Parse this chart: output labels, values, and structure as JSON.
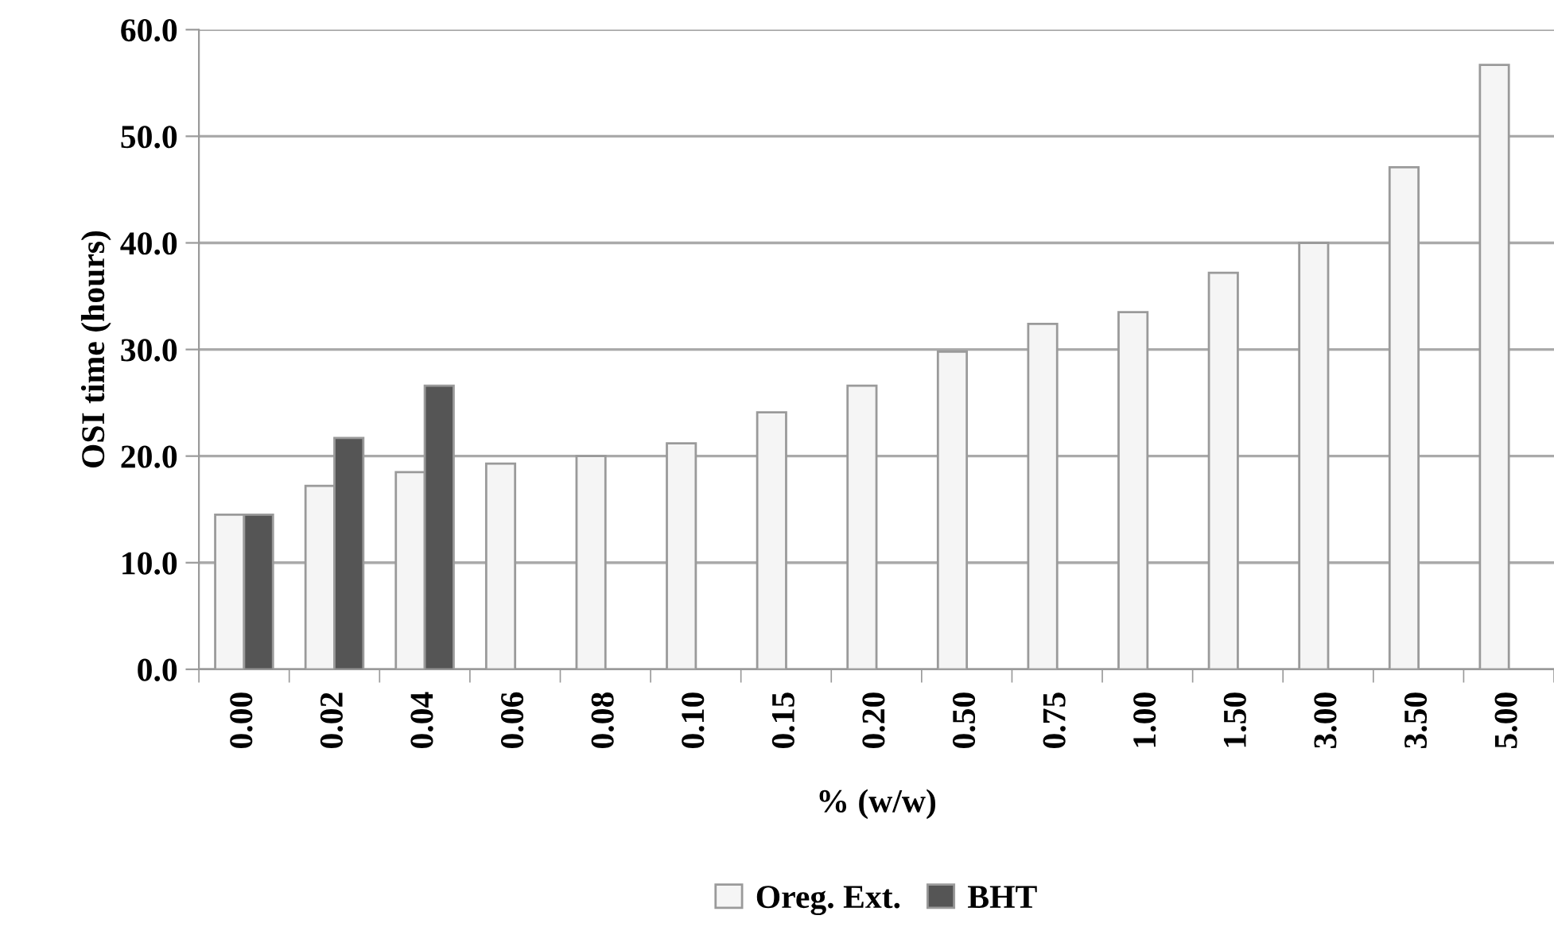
{
  "chart_data": {
    "type": "bar",
    "xlabel": "% (w/w)",
    "ylabel": "OSI time (hours)",
    "categories": [
      "0.00",
      "0.02",
      "0.04",
      "0.06",
      "0.08",
      "0.10",
      "0.15",
      "0.20",
      "0.50",
      "0.75",
      "1.00",
      "1.50",
      "3.00",
      "3.50",
      "5.00"
    ],
    "series": [
      {
        "name": "Oreg. Ext.",
        "color": "#f5f5f5",
        "values": [
          14.5,
          17.2,
          18.5,
          19.3,
          20.0,
          21.2,
          24.1,
          26.6,
          29.8,
          32.4,
          33.5,
          37.2,
          40.0,
          47.1,
          56.7
        ]
      },
      {
        "name": "BHT",
        "color": "#555555",
        "values": [
          14.5,
          21.7,
          26.6,
          null,
          null,
          null,
          null,
          null,
          null,
          null,
          null,
          null,
          null,
          null,
          null
        ]
      }
    ],
    "ylim": [
      0,
      60
    ],
    "yticks": [
      {
        "value": 0,
        "label": "0.0"
      },
      {
        "value": 10,
        "label": "10.0"
      },
      {
        "value": 20,
        "label": "20.0"
      },
      {
        "value": 30,
        "label": "30.0"
      },
      {
        "value": 40,
        "label": "40.0"
      },
      {
        "value": 50,
        "label": "50.0"
      },
      {
        "value": 60,
        "label": "60.0"
      }
    ],
    "grid": "y",
    "legend": "bottom"
  }
}
